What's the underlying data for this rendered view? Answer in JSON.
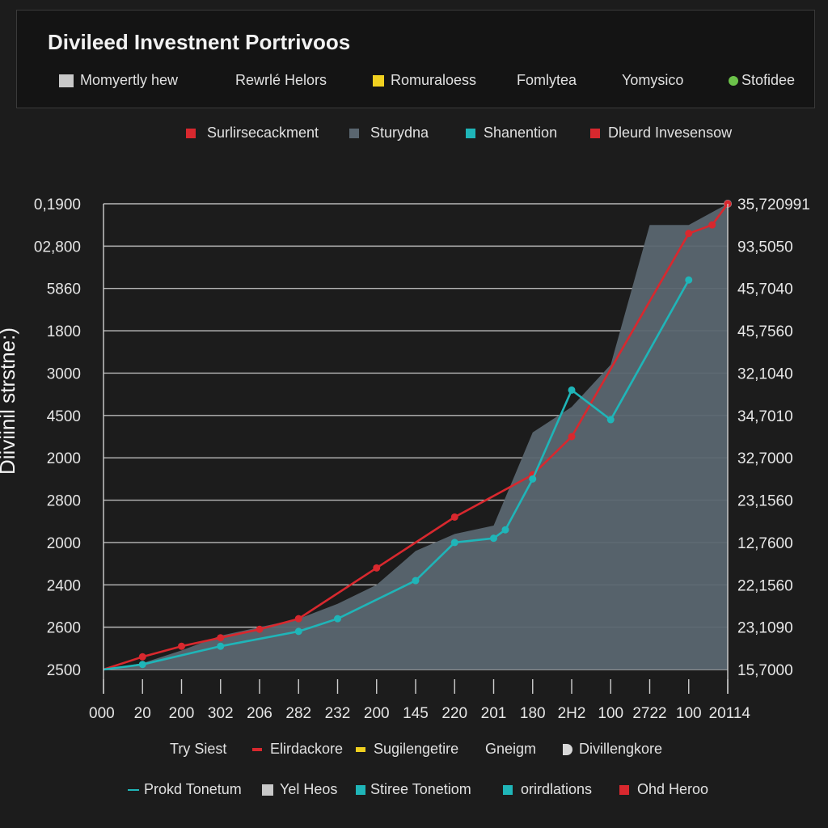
{
  "chart_data": {
    "type": "line",
    "title": "Divileed Investnent Portrivoos",
    "ylabel": "Diiviinil strstne:)",
    "header_legend": [
      {
        "label": "Momyertly hew",
        "color": "#c8c8c8",
        "marker": "square"
      },
      {
        "label": "Rewrlé Helors",
        "color": "",
        "marker": "none"
      },
      {
        "label": "Romuraloess",
        "color": "#f0d020",
        "marker": "square"
      },
      {
        "label": "Fomlytea",
        "color": "",
        "marker": "none"
      },
      {
        "label": "Yomysico",
        "color": "",
        "marker": "none"
      },
      {
        "label": "Stofidee",
        "color": "#6cc24a",
        "marker": "dot"
      }
    ],
    "series_legend": [
      {
        "label": "Surlirsecackment",
        "color": "#d8282e"
      },
      {
        "label": "Sturydna",
        "color": "#5a6670"
      },
      {
        "label": "Shanention",
        "color": "#1fb5b8"
      },
      {
        "label": "Dleurd Invesensow",
        "color": "#d8282e"
      }
    ],
    "bottom_legend_1": [
      {
        "label": "Try Siest",
        "color": "",
        "marker": "none"
      },
      {
        "label": "Elirdackore",
        "color": "#d8282e",
        "marker": "dash"
      },
      {
        "label": "Sugilengetire",
        "color": "#f0d020",
        "marker": "dash"
      },
      {
        "label": "Gneigm",
        "color": "",
        "marker": "none"
      },
      {
        "label": "Divillengkore",
        "color": "#d8d8d8",
        "marker": "d-glyph"
      }
    ],
    "bottom_legend_2": [
      {
        "label": "Prokd Tonetum",
        "color": "#1fb5b8",
        "marker": "line"
      },
      {
        "label": "Yel Heos",
        "color": "#c8c8c8",
        "marker": "square"
      },
      {
        "label": "Stiree Tonetiom",
        "color": "#1fb5b8",
        "marker": "square"
      },
      {
        "label": "orirdlations",
        "color": "#1fb5b8",
        "marker": "square"
      },
      {
        "label": "Ohd Heroo",
        "color": "#d8282e",
        "marker": "square"
      }
    ],
    "x_tick_labels": [
      "000",
      "20",
      "200",
      "302",
      "206",
      "282",
      "232",
      "200",
      "145",
      "220",
      "201",
      "180",
      "2H2",
      "100",
      "2722",
      "100",
      "20114"
    ],
    "y_left_tick_labels": [
      "0,1900",
      "02,800",
      "5860",
      "1800",
      "3000",
      "4500",
      "2000",
      "2800",
      "2000",
      "2400",
      "2600",
      "2500"
    ],
    "y_right_tick_labels": [
      "35,720991",
      "93,5050",
      "45,7040",
      "45,7560",
      "32,1040",
      "34,7010",
      "32,7000",
      "23,1560",
      "12,7600",
      "22,1560",
      "23,1090",
      "15,7000"
    ],
    "ylim": [
      0,
      11
    ],
    "xlim": [
      0,
      16
    ],
    "grid": true,
    "series": [
      {
        "name": "Sturydna",
        "kind": "area",
        "color": "#5a6670",
        "x": [
          0,
          1,
          2,
          3,
          4,
          5,
          6,
          7,
          8,
          9,
          10,
          11,
          12,
          13,
          14,
          15,
          16
        ],
        "y": [
          0,
          0.15,
          0.45,
          0.8,
          1.0,
          1.2,
          1.55,
          2.0,
          2.8,
          3.2,
          3.4,
          5.6,
          6.2,
          7.2,
          10.5,
          10.5,
          11
        ]
      },
      {
        "name": "Surlirsecackment",
        "kind": "line",
        "color": "#d8282e",
        "x": [
          0,
          1,
          2,
          3,
          4,
          5,
          7,
          9,
          11,
          12,
          15,
          15.6,
          16
        ],
        "y": [
          0,
          0.3,
          0.55,
          0.75,
          0.95,
          1.2,
          2.4,
          3.6,
          4.6,
          5.5,
          10.3,
          10.5,
          11
        ]
      },
      {
        "name": "Shanention",
        "kind": "line",
        "color": "#1fb5b8",
        "x": [
          0,
          1,
          3,
          5,
          6,
          8,
          9,
          10,
          10.3,
          11,
          12,
          13,
          15
        ],
        "y": [
          0,
          0.12,
          0.55,
          0.9,
          1.2,
          2.1,
          3.0,
          3.1,
          3.3,
          4.5,
          6.6,
          5.9,
          9.2
        ]
      }
    ]
  }
}
